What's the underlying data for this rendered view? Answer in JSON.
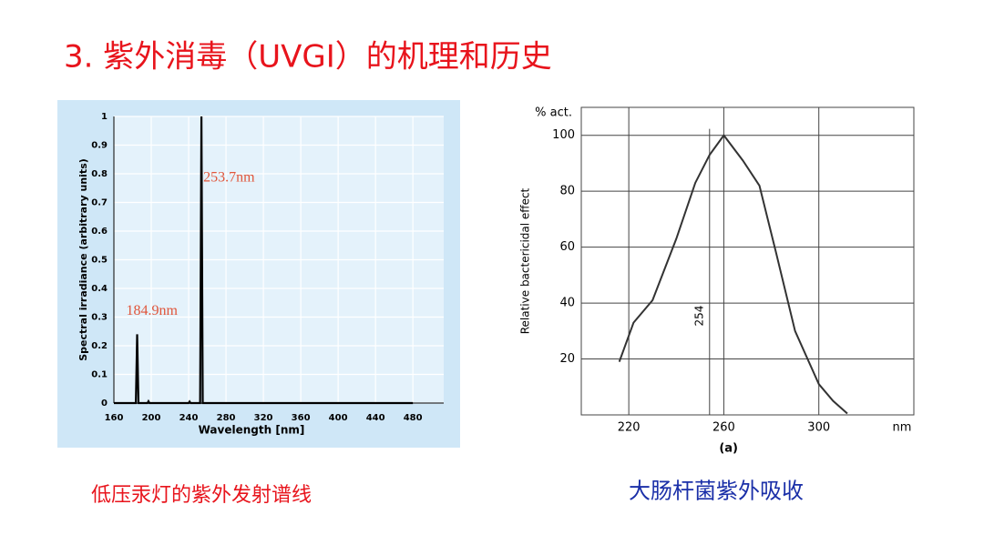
{
  "title": "3. 紫外消毒（UVGI）的机理和历史",
  "chart_data": [
    {
      "type": "line",
      "xlabel": "Wavelength [nm]",
      "ylabel": "Spectral irradiance (arbitrary units)",
      "x": [
        160,
        183.5,
        184.9,
        186.3,
        196,
        197,
        198,
        240,
        241,
        242,
        252.3,
        253.7,
        255.1,
        480
      ],
      "values": [
        0,
        0,
        0.24,
        0,
        0,
        0.006,
        0,
        0,
        0.005,
        0,
        0,
        1,
        0,
        0
      ],
      "color": "#000000",
      "annotations": [
        "184.9nm",
        "253.7nm"
      ],
      "annotation_color": "#e0553a",
      "xlim": [
        160,
        513
      ],
      "ylim": [
        0,
        1
      ],
      "xticks": [
        160,
        200,
        240,
        280,
        320,
        360,
        400,
        440,
        480
      ],
      "yticks": [
        0,
        0.1,
        0.2,
        0.3,
        0.4,
        0.5,
        0.6,
        0.7,
        0.8,
        0.9,
        1
      ],
      "grid": true
    },
    {
      "type": "line",
      "ylabel": "Relative bactericidal effect",
      "yunit": "% act.",
      "xunit": "nm",
      "caption": "(a)",
      "x": [
        216,
        222,
        230,
        240,
        248,
        254,
        260,
        268,
        275,
        282,
        290,
        300,
        306,
        312
      ],
      "values": [
        19,
        33,
        41,
        63,
        83,
        93,
        100,
        91,
        82,
        58,
        30,
        11,
        5,
        0.5
      ],
      "color": "#333333",
      "vlines": [
        254
      ],
      "xlim": [
        200,
        340
      ],
      "ylim": [
        0,
        110
      ],
      "xticks": [
        220,
        260,
        300
      ],
      "yticks": [
        20,
        40,
        60,
        80,
        100
      ],
      "grid": true
    }
  ],
  "captions": [
    "低压汞灯的紫外发射谱线",
    "大肠杆菌紫外吸收"
  ]
}
